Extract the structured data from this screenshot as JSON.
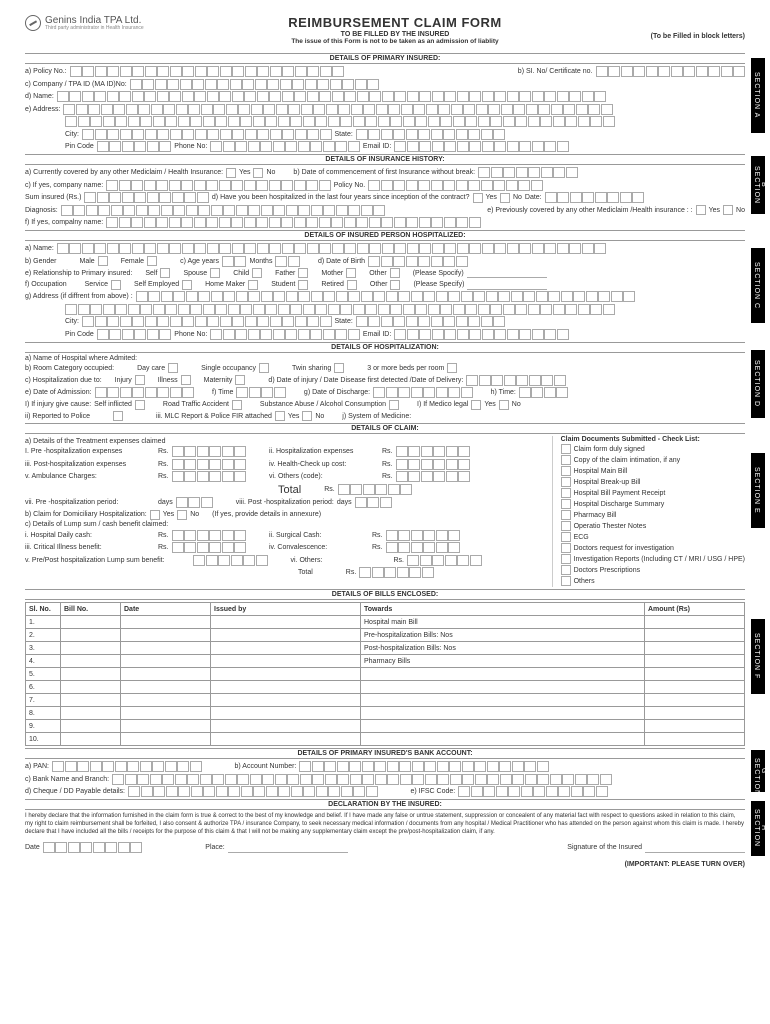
{
  "company": {
    "name": "Genins India TPA Ltd.",
    "tagline": "Third party administrator in Health Insurance"
  },
  "title": {
    "main": "REIMBURSEMENT CLAIM FORM",
    "sub": "TO BE FILLED BY THE INSURED",
    "note": "The issue of this Form is not to be taken as an admission of liablity",
    "fill": "(To be Filled in block letters)"
  },
  "sections": {
    "a": {
      "header": "DETAILS OF PRIMARY INSURED:",
      "tab": "SECTION A",
      "policy": "a) Policy No.:",
      "cert": "b) SI. No/ Certificate no.",
      "company": "c) Company / TPA ID (MA ID)No:",
      "name": "d) Name:",
      "address": "e) Address:",
      "city": "City:",
      "state": "State:",
      "pin": "Pin Code",
      "phone": "Phone No:",
      "email": "Email ID:"
    },
    "b": {
      "header": "DETAILS OF INSURANCE HISTORY:",
      "tab": "SECTION B",
      "covered": "a) Currently covered by any other Mediclaim / Health Insurance:",
      "yes": "Yes",
      "no": "No",
      "commence": "b) Date of  commencement of first Insurance without break:",
      "ifyes": "c) If yes, company name:",
      "policyno": "Policy No.",
      "sum": "Sum insured (Rs.)",
      "hosp": "d) Have you been hospitalized in the last four years since inception of the contract?",
      "date": "Date:",
      "diag": "Diagnosis:",
      "prev": "e) Previously covered by any other Mediclaim /Health insurance : :",
      "ifyes2": "f) If yes, compalny name:"
    },
    "c": {
      "header": "DETAILS OF INSURED PERSON HOSPITALIZED:",
      "tab": "SECTION  C",
      "name": "a) Name:",
      "gender": "b) Gender",
      "male": "Male",
      "female": "Female",
      "age": "c) Age years",
      "months": "Months",
      "dob": "d) Date of Birth",
      "rel": "e) Relationship to Primary insured:",
      "self": "Self",
      "spouse": "Spouse",
      "child": "Child",
      "father": "Father",
      "mother": "Mother",
      "other": "Other",
      "specify": "(Please Spocify)",
      "occ": "f) Occupation",
      "service": "Service",
      "selfemp": "Self Employed",
      "homemaker": "Home Maker",
      "student": "Student",
      "retired": "Retired",
      "specify2": "(Please Specify)",
      "addr": "g) Address (if diffrent from above) :",
      "city": "City:",
      "state": "State:",
      "pin": "Pin Code",
      "phone": "Phone No:",
      "email": "Email ID:"
    },
    "d": {
      "header": "DETAILS OF HOSPITALIZATION:",
      "tab": "SECTION D",
      "hosp": "a) Name of Hospital where Admited:",
      "room": "b) Room Category occupied:",
      "daycare": "Day care",
      "single": "Single occupancy",
      "twin": "Twin sharing",
      "more": "3 or more beds per room",
      "due": "c) Hospitalization due to:",
      "injury": "Injury",
      "illness": "Illness",
      "maternity": "Maternity",
      "detected": "d) Date of injury / Date Disease first detected  /Date of Delivery:",
      "admit": "e) Date of  Admission:",
      "ftime": "f) Time",
      "discharge": "g) Date of Discharge:",
      "htime": "h) Time:",
      "cause": "I) If injury give cause:",
      "selfinf": "Self inflicted",
      "rta": "Road Traffic Accident",
      "abuse": "Substance Abuse / Alcohol Consumption",
      "medico": "I) If Medico  legal",
      "yes": "Yes",
      "no": "No",
      "police": "ii) Reported to Police",
      "mlc": "iii. MLC Report & Police FIR attached",
      "system": "j) System of Medicine:"
    },
    "e": {
      "header": "DETAILS OF CLAIM:",
      "tab": "SECTION E",
      "treat": "a) Details of the Treatment expenses claimed",
      "pre": "I.  Pre -hospitalization expenses",
      "rs": "Rs.",
      "hosp": "ii.  Hospitalization expenses",
      "post": "iii. Post-hospitalization expenses",
      "health": "iv.  Health-Check up cost:",
      "amb": "v.  Ambulance Charges:",
      "others": "vi.  Others (code):",
      "total": "Total",
      "preperiod": "vii.  Pre -hospitalization period:",
      "days": "days",
      "postperiod": "viii.  Post -hospitalization period:",
      "dom": "b) Claim for Domiciliary Hospitalization:",
      "yes": "Yes",
      "no": "No",
      "annex": "(If yes, provide details in annexure)",
      "lump": "c) Details of Lump sum / cash benefit claimed:",
      "daily": "i. Hospital Daily cash:",
      "surgical": "ii. Surgical Cash:",
      "critical": "iii. Critical Illness benefit:",
      "conv": "iv. Convalescence:",
      "prepost": "v.  Pre/Post hospitalization Lump sum benefit:",
      "othersvi": "vi. Others:",
      "checklist": {
        "title": "Claim Documents Submitted - Check List:",
        "items": [
          "Claim form duly signed",
          "Copy of the claim intimation, if any",
          "Hospital Main Bill",
          "Hospital Break-up Bill",
          "Hospital Bill Payment Receipt",
          "Hospital Discharge Summary",
          "Pharmacy Bill",
          "Operatio Thester Notes",
          "ECG",
          "Doctors request for investigation",
          "Investigation Reports (Including CT / MRI / USG / HPE)",
          "Doctors Prescriptions",
          "Others"
        ]
      }
    },
    "f": {
      "header": "DETAILS OF BILLS ENCLOSED:",
      "tab": "SECTION F",
      "cols": [
        "Sl. No.",
        "Bill No.",
        "Date",
        "Issued by",
        "Towards",
        "Amount (Rs)"
      ],
      "rows": [
        "1.",
        "2.",
        "3.",
        "4.",
        "5.",
        "6.",
        "7.",
        "8.",
        "9.",
        "10."
      ],
      "towards": [
        "Hospital main Bill",
        "Pre-hospitalization Bills:      Nos",
        "Post-hospitalization Bills:     Nos",
        "Pharmacy Bills",
        "",
        "",
        "",
        "",
        "",
        ""
      ]
    },
    "g": {
      "header": "DETAILS OF PRIMARY INSURED'S BANK ACCOUNT:",
      "tab": "SECTION G",
      "pan": "a) PAN:",
      "acct": "b) Account Number:",
      "bank": "c) Bank Name and Branch:",
      "cheque": "d) Cheque / DD Payable details:",
      "ifsc": "e) IFSC Code:"
    },
    "h": {
      "header": "DECLARATION BY THE INSURED:",
      "tab": "SECTION H",
      "text": "I hereby declare that the information furnished in the claim form is true & correct to the best of my knowledge and belief. If I have made any false or untrue statement, suppression or concealent of any material fact with respect to questions asked in relation to this claim, my right to claim reimbursement shall be forfeited, I also consent & authorize TPA / insurance Company, to seek necessary medical information / documents from any hospital / Medical Practitioner who has attended on the person against whom this claim is made. I hereby declare that I have included all the bills / receipts for the purpose of this claim & that I will not be making any supplementary claim except the pre/post-hospitalization claim, if any.",
      "date": "Date",
      "place": "Place:",
      "sig": "Signature of the Insured"
    }
  },
  "footer": "(IMPORTANT: PLEASE TURN OVER)"
}
